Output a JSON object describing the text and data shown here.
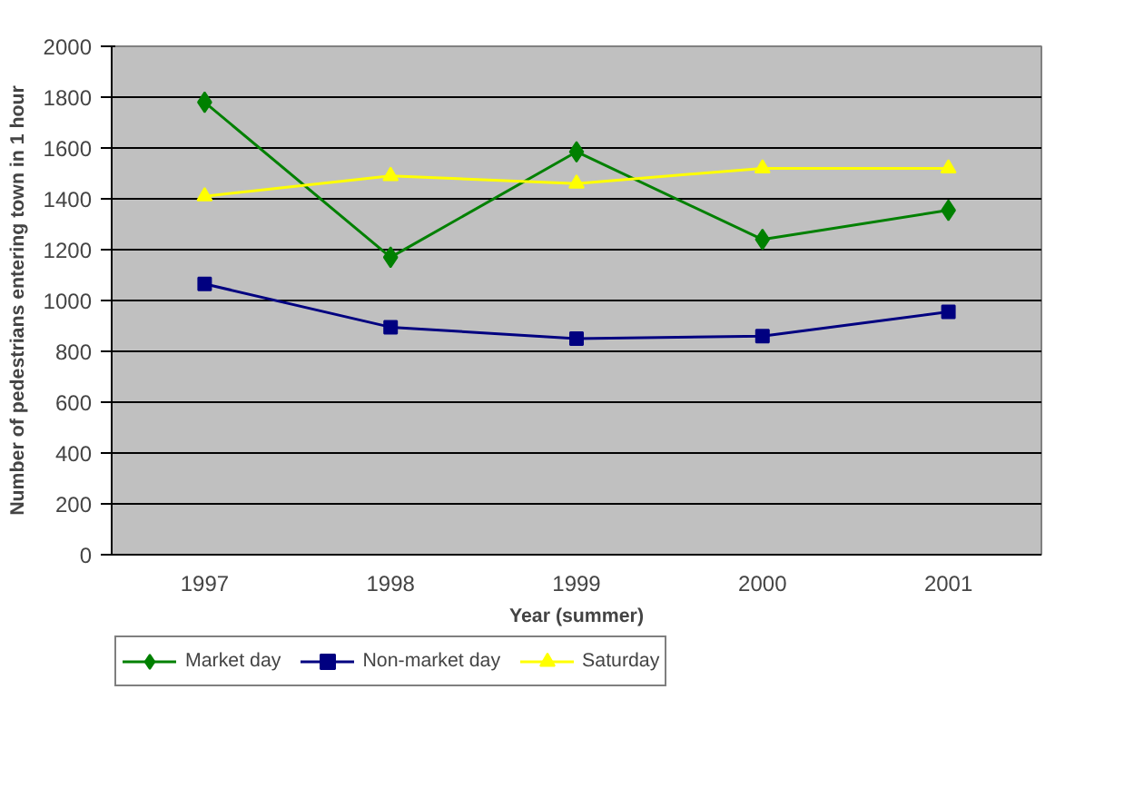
{
  "chart_data": {
    "type": "line",
    "xlabel": "Year (summer)",
    "ylabel": "Number of pedestrians entering town in 1 hour",
    "categories": [
      "1997",
      "1998",
      "1999",
      "2000",
      "2001"
    ],
    "series": [
      {
        "name": "Market day",
        "color": "#008000",
        "marker": "diamond",
        "values": [
          1780,
          1170,
          1585,
          1240,
          1355
        ]
      },
      {
        "name": "Non-market day",
        "color": "#000080",
        "marker": "square",
        "values": [
          1065,
          895,
          850,
          860,
          955
        ]
      },
      {
        "name": "Saturday",
        "color": "#ffff00",
        "marker": "triangle",
        "values": [
          1410,
          1490,
          1460,
          1520,
          1520
        ]
      }
    ],
    "ylim": [
      0,
      2000
    ],
    "yticks": [
      0,
      200,
      400,
      600,
      800,
      1000,
      1200,
      1400,
      1600,
      1800,
      2000
    ],
    "grid": "y",
    "legend": "bottom",
    "line_style": "solid"
  }
}
